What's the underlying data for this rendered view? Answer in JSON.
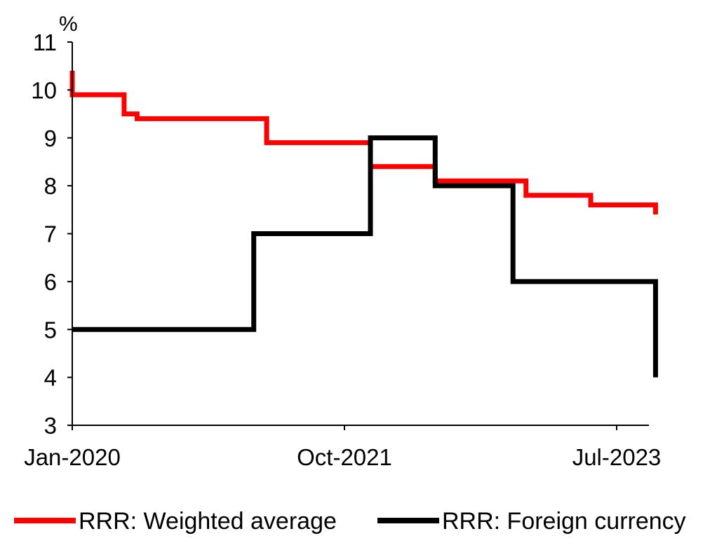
{
  "chart_data": {
    "type": "line",
    "step": true,
    "y_unit": "%",
    "ylim": [
      3,
      11
    ],
    "yticks": [
      3,
      4,
      5,
      6,
      7,
      8,
      9,
      10,
      11
    ],
    "x_range": [
      "2020-01",
      "2023-10"
    ],
    "x_tick_labels": [
      {
        "date": "2020-01",
        "label": "Jan-2020"
      },
      {
        "date": "2021-10",
        "label": "Oct-2021"
      },
      {
        "date": "2023-07",
        "label": "Jul-2023"
      }
    ],
    "grid": false,
    "legend_position": "bottom",
    "series": [
      {
        "name": "RRR: Weighted average",
        "color": "#ff0000",
        "points": [
          {
            "x": "2020-01",
            "y": 10.4
          },
          {
            "x": "2020-01",
            "y": 9.9
          },
          {
            "x": "2020-05",
            "y": 9.5
          },
          {
            "x": "2020-06",
            "y": 9.4
          },
          {
            "x": "2021-03",
            "y": 9.4
          },
          {
            "x": "2021-04",
            "y": 8.9
          },
          {
            "x": "2021-12",
            "y": 8.4
          },
          {
            "x": "2022-05",
            "y": 8.1
          },
          {
            "x": "2022-12",
            "y": 7.8
          },
          {
            "x": "2023-05",
            "y": 7.6
          },
          {
            "x": "2023-10",
            "y": 7.4
          }
        ]
      },
      {
        "name": "RRR: Foreign currency",
        "color": "#000000",
        "points": [
          {
            "x": "2020-01",
            "y": 5
          },
          {
            "x": "2021-03",
            "y": 7
          },
          {
            "x": "2021-12",
            "y": 9
          },
          {
            "x": "2022-05",
            "y": 8
          },
          {
            "x": "2022-11",
            "y": 6
          },
          {
            "x": "2023-10",
            "y": 4
          }
        ]
      }
    ]
  }
}
